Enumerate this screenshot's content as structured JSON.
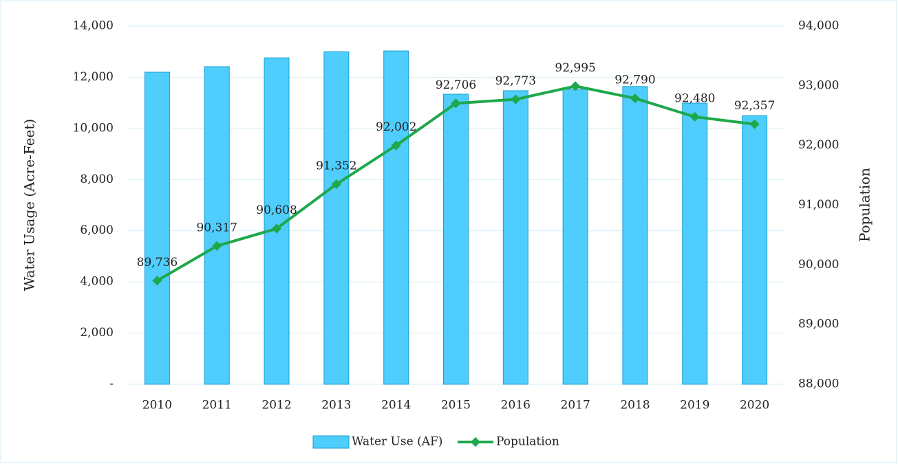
{
  "chart_data": {
    "type": "bar_line",
    "categories": [
      "2010",
      "2011",
      "2012",
      "2013",
      "2014",
      "2015",
      "2016",
      "2017",
      "2018",
      "2019",
      "2020"
    ],
    "series": [
      {
        "name": "Water Use (AF)",
        "type": "bar",
        "color": "#4fcdfc",
        "values": [
          12200,
          12415,
          12760,
          13000,
          13030,
          11340,
          11475,
          11530,
          11640,
          10990,
          10500
        ]
      },
      {
        "name": "Population",
        "type": "line",
        "axis": "y2",
        "color": "#1ea84b",
        "values": [
          89736,
          90317,
          90608,
          91352,
          92002,
          92706,
          92773,
          92995,
          92790,
          92480,
          92357
        ],
        "value_labels": [
          "89,736",
          "90,317",
          "90,608",
          "91,352",
          "92,002",
          "92,706",
          "92,773",
          "92,995",
          "92,790",
          "92,480",
          "92,357"
        ]
      }
    ],
    "ylabel": "Water Usage (Acre-Feet)",
    "y2label": "Population",
    "ylim": [
      0,
      14000
    ],
    "yticks": [
      {
        "value": 0,
        "label": "-"
      },
      {
        "value": 2000,
        "label": "2,000"
      },
      {
        "value": 4000,
        "label": "4,000"
      },
      {
        "value": 6000,
        "label": "6,000"
      },
      {
        "value": 8000,
        "label": "8,000"
      },
      {
        "value": 10000,
        "label": "10,000"
      },
      {
        "value": 12000,
        "label": "12,000"
      },
      {
        "value": 14000,
        "label": "14,000"
      }
    ],
    "y2lim": [
      88000,
      94000
    ],
    "y2ticks": [
      {
        "value": 88000,
        "label": "88,000"
      },
      {
        "value": 89000,
        "label": "89,000"
      },
      {
        "value": 90000,
        "label": "90,000"
      },
      {
        "value": 91000,
        "label": "91,000"
      },
      {
        "value": 92000,
        "label": "92,000"
      },
      {
        "value": 93000,
        "label": "93,000"
      },
      {
        "value": 94000,
        "label": "94,000"
      }
    ],
    "grid": true,
    "legend": "bottom"
  }
}
